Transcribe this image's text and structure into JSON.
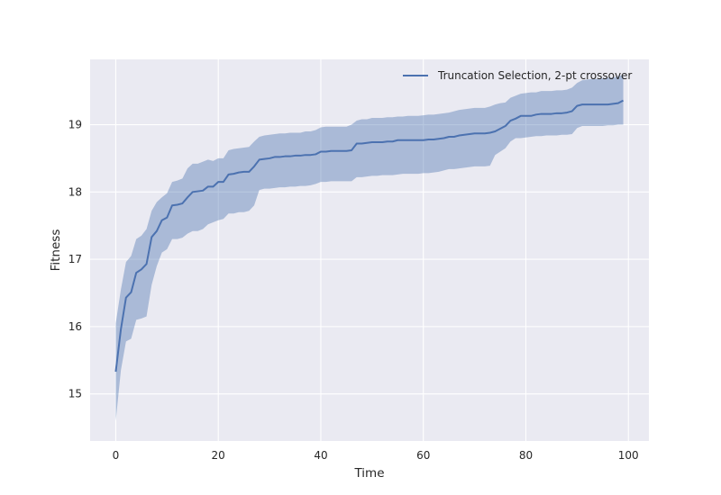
{
  "chart_data": {
    "type": "line",
    "title": "",
    "xlabel": "Time",
    "ylabel": "Fitness",
    "xlim": [
      -5,
      104
    ],
    "ylim": [
      14.3,
      19.97
    ],
    "xticks": [
      0,
      20,
      40,
      60,
      80,
      100
    ],
    "yticks": [
      15,
      16,
      17,
      18,
      19
    ],
    "grid": true,
    "legend": "top-right",
    "colors": {
      "background": "#eaeaf2",
      "grid": "#ffffff",
      "line": "#4c72b0",
      "band": "#4c72b0"
    },
    "series": [
      {
        "name": "Truncation Selection, 2-pt crossover",
        "x": [
          0,
          1,
          2,
          3,
          4,
          5,
          6,
          7,
          8,
          9,
          10,
          11,
          12,
          13,
          14,
          15,
          16,
          17,
          18,
          19,
          20,
          21,
          22,
          23,
          24,
          25,
          26,
          27,
          28,
          29,
          30,
          31,
          32,
          33,
          34,
          35,
          36,
          37,
          38,
          39,
          40,
          41,
          42,
          43,
          44,
          45,
          46,
          47,
          48,
          49,
          50,
          51,
          52,
          53,
          54,
          55,
          56,
          57,
          58,
          59,
          60,
          61,
          62,
          63,
          64,
          65,
          66,
          67,
          68,
          69,
          70,
          71,
          72,
          73,
          74,
          75,
          76,
          77,
          78,
          79,
          80,
          81,
          82,
          83,
          84,
          85,
          86,
          87,
          88,
          89,
          90,
          91,
          92,
          93,
          94,
          95,
          96,
          97,
          98,
          99
        ],
        "mean": [
          15.33,
          15.96,
          16.43,
          16.51,
          16.8,
          16.85,
          16.93,
          17.33,
          17.42,
          17.58,
          17.62,
          17.8,
          17.81,
          17.83,
          17.92,
          18.0,
          18.01,
          18.02,
          18.08,
          18.08,
          18.15,
          18.15,
          18.26,
          18.27,
          18.29,
          18.3,
          18.3,
          18.38,
          18.48,
          18.49,
          18.5,
          18.52,
          18.52,
          18.53,
          18.53,
          18.54,
          18.54,
          18.55,
          18.55,
          18.56,
          18.6,
          18.6,
          18.61,
          18.61,
          18.61,
          18.61,
          18.62,
          18.72,
          18.72,
          18.73,
          18.74,
          18.74,
          18.74,
          18.75,
          18.75,
          18.77,
          18.77,
          18.77,
          18.77,
          18.77,
          18.77,
          18.78,
          18.78,
          18.79,
          18.8,
          18.82,
          18.82,
          18.84,
          18.85,
          18.86,
          18.87,
          18.87,
          18.87,
          18.88,
          18.9,
          18.94,
          18.98,
          19.06,
          19.09,
          19.13,
          19.13,
          19.13,
          19.15,
          19.16,
          19.16,
          19.16,
          19.17,
          19.17,
          19.18,
          19.2,
          19.28,
          19.3,
          19.3,
          19.3,
          19.3,
          19.3,
          19.3,
          19.31,
          19.32,
          19.36
        ],
        "upper": [
          16.05,
          16.55,
          16.96,
          17.05,
          17.3,
          17.35,
          17.45,
          17.72,
          17.85,
          17.92,
          17.98,
          18.15,
          18.17,
          18.2,
          18.35,
          18.42,
          18.42,
          18.45,
          18.48,
          18.46,
          18.5,
          18.5,
          18.62,
          18.64,
          18.65,
          18.66,
          18.67,
          18.75,
          18.82,
          18.84,
          18.85,
          18.86,
          18.87,
          18.87,
          18.88,
          18.88,
          18.88,
          18.9,
          18.9,
          18.92,
          18.96,
          18.97,
          18.97,
          18.97,
          18.97,
          18.97,
          19.0,
          19.06,
          19.08,
          19.08,
          19.1,
          19.1,
          19.1,
          19.11,
          19.11,
          19.12,
          19.12,
          19.13,
          19.13,
          19.13,
          19.14,
          19.15,
          19.15,
          19.16,
          19.17,
          19.18,
          19.2,
          19.22,
          19.23,
          19.24,
          19.25,
          19.25,
          19.25,
          19.27,
          19.3,
          19.32,
          19.33,
          19.4,
          19.43,
          19.46,
          19.47,
          19.48,
          19.48,
          19.5,
          19.5,
          19.5,
          19.51,
          19.51,
          19.52,
          19.55,
          19.62,
          19.66,
          19.67,
          19.68,
          19.68,
          19.69,
          19.7,
          19.7,
          19.72,
          19.74
        ],
        "lower": [
          14.6,
          15.35,
          15.78,
          15.82,
          16.1,
          16.12,
          16.15,
          16.62,
          16.9,
          17.1,
          17.15,
          17.3,
          17.3,
          17.32,
          17.38,
          17.42,
          17.42,
          17.45,
          17.52,
          17.55,
          17.58,
          17.6,
          17.68,
          17.68,
          17.7,
          17.7,
          17.72,
          17.8,
          18.03,
          18.05,
          18.05,
          18.06,
          18.07,
          18.07,
          18.08,
          18.08,
          18.09,
          18.09,
          18.1,
          18.12,
          18.15,
          18.15,
          18.16,
          18.16,
          18.16,
          18.16,
          18.16,
          18.22,
          18.22,
          18.23,
          18.24,
          18.24,
          18.25,
          18.25,
          18.25,
          18.26,
          18.27,
          18.27,
          18.27,
          18.27,
          18.28,
          18.28,
          18.29,
          18.3,
          18.32,
          18.34,
          18.34,
          18.35,
          18.36,
          18.37,
          18.38,
          18.38,
          18.38,
          18.39,
          18.55,
          18.6,
          18.65,
          18.75,
          18.8,
          18.8,
          18.81,
          18.82,
          18.83,
          18.83,
          18.84,
          18.84,
          18.84,
          18.85,
          18.85,
          18.86,
          18.95,
          18.98,
          18.98,
          18.98,
          18.98,
          18.98,
          18.99,
          18.99,
          19.0,
          19.0
        ]
      }
    ]
  }
}
